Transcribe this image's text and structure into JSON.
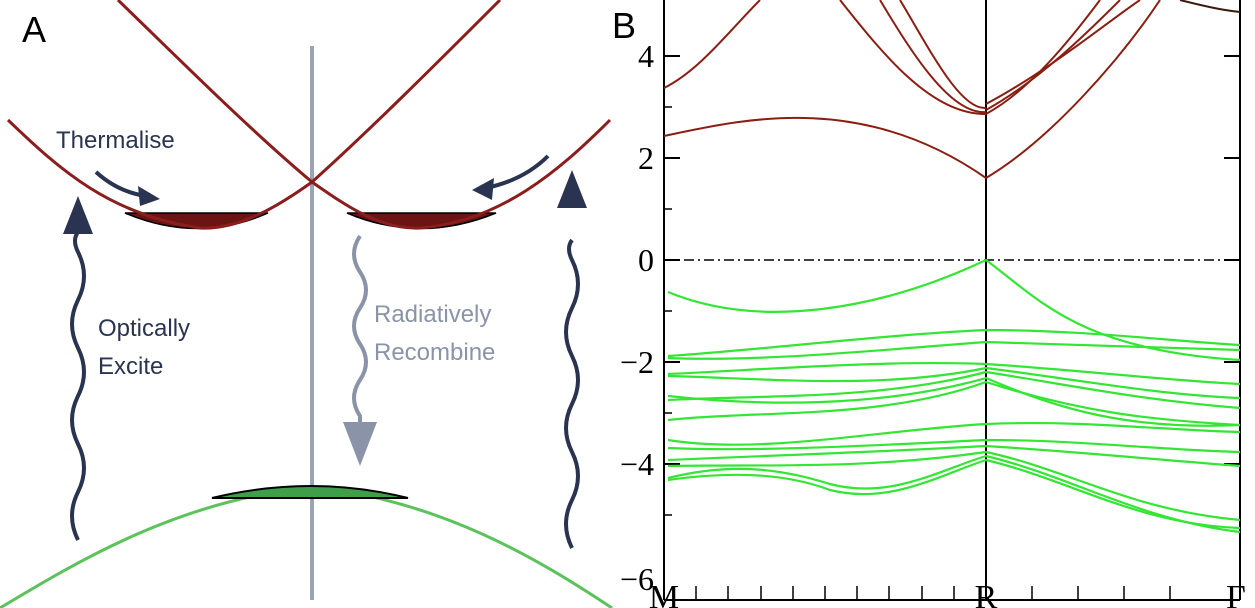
{
  "panel_a": {
    "label": "A",
    "thermalise": "Thermalise",
    "optically_excite": [
      "Optically",
      "Excite"
    ],
    "radiatively_recombine": [
      "Radiatively",
      "Recombine"
    ],
    "colors": {
      "conduction_band": "#8b1d1d",
      "conduction_fill": "#6b1414",
      "valence_band": "#5cc25c",
      "valence_fill": "#3f9e4a",
      "arrow_dark": "#2a3450",
      "arrow_light": "#8a93a8",
      "axis_line": "#9aa3b8"
    }
  },
  "panel_b": {
    "label": "B",
    "y_ticks": [
      "4",
      "2",
      "0",
      "−2",
      "−4",
      "−6"
    ],
    "k_labels": [
      "M",
      "R",
      "Γ"
    ],
    "colors": {
      "conduction_band": "#8a1e12",
      "valence_band": "#33e633",
      "fermi_line": "#000000"
    }
  }
}
